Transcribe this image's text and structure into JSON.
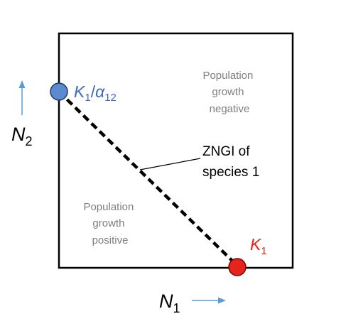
{
  "colors": {
    "k1_point": "#e8231b",
    "k1_label": "#e8231b",
    "k1_alpha_point": "#5b8ad0",
    "k1_alpha_label": "#3d6bbf",
    "arrow": "#5b9bd5",
    "region_text": "#7f7f7f",
    "zngi_line": "#000000"
  },
  "axes": {
    "x_symbol": "N",
    "x_subscript": "1",
    "y_symbol": "N",
    "y_subscript": "2",
    "x_arrow_icon": "arrow-right-icon",
    "y_arrow_icon": "arrow-up-icon"
  },
  "points": {
    "k1": {
      "symbol": "K",
      "subscript": "1"
    },
    "k1_alpha": {
      "symbol_k": "K",
      "subscript_k": "1",
      "slash": "/",
      "symbol_alpha": "α",
      "subscript_alpha": "12"
    }
  },
  "regions": {
    "negative": [
      "Population",
      "growth",
      "negative"
    ],
    "positive": [
      "Population",
      "growth",
      "positive"
    ]
  },
  "zngi_label": [
    "ZNGI of",
    "species 1"
  ]
}
